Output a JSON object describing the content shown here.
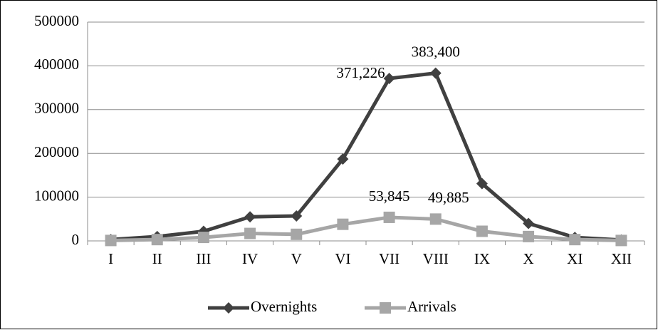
{
  "chart_data": {
    "type": "line",
    "categories": [
      "I",
      "II",
      "III",
      "IV",
      "V",
      "VI",
      "VII",
      "VIII",
      "IX",
      "X",
      "XI",
      "XII"
    ],
    "series": [
      {
        "name": "Overnights",
        "color": "#404040",
        "marker": "diamond",
        "values": [
          3000,
          10000,
          22000,
          55000,
          57000,
          187000,
          371226,
          383400,
          131000,
          40000,
          8000,
          2000
        ],
        "value_labels": [
          null,
          null,
          null,
          null,
          null,
          null,
          "371,226",
          "383,400",
          null,
          null,
          null,
          null
        ]
      },
      {
        "name": "Arrivals",
        "color": "#a6a6a6",
        "marker": "square",
        "values": [
          1000,
          3000,
          8000,
          17000,
          15000,
          38000,
          53845,
          49885,
          22000,
          10000,
          3000,
          1000
        ],
        "value_labels": [
          null,
          null,
          null,
          null,
          null,
          null,
          "53,845",
          "49,885",
          null,
          null,
          null,
          null
        ]
      }
    ],
    "ylim": [
      0,
      500000
    ],
    "yticks": [
      0,
      100000,
      200000,
      300000,
      400000,
      500000
    ],
    "grid": true,
    "legend": "bottom"
  }
}
